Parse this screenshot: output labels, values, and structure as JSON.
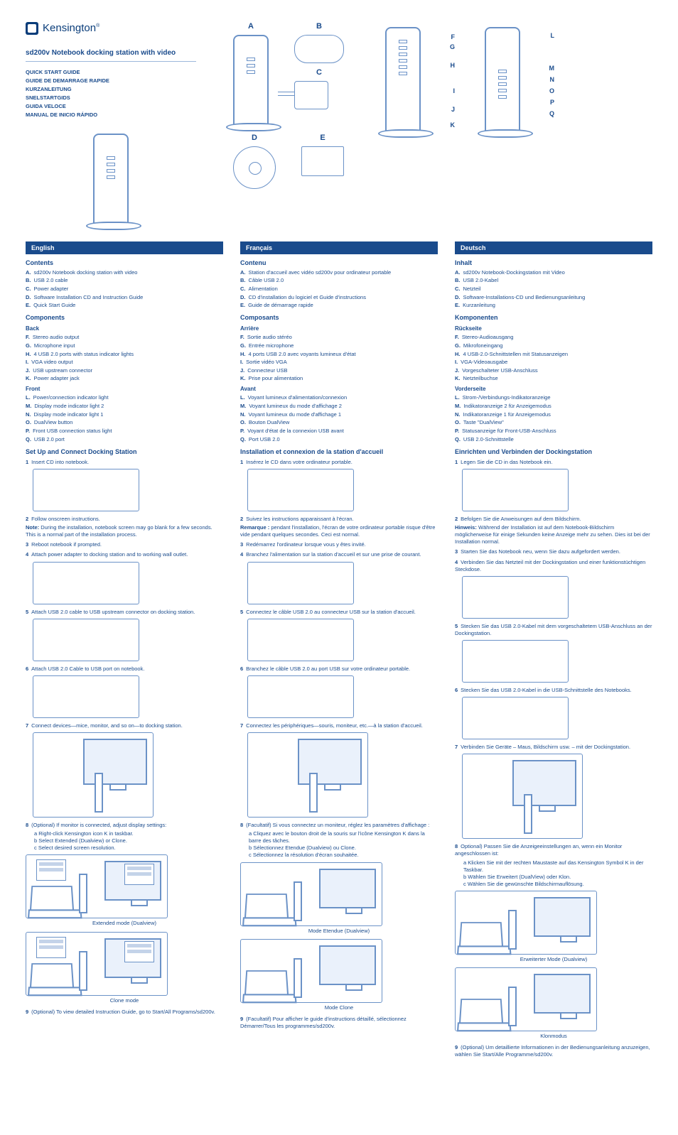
{
  "brand": "Kensington",
  "product_title": "sd200v Notebook docking station with video",
  "guides": [
    "QUICK START GUIDE",
    "GUIDE DE DEMARRAGE RAPIDE",
    "KURZANLEITUNG",
    "SNELSTARTGIDS",
    "GUIDA VELOCE",
    "MANUAL DE INICIO RÁPIDO"
  ],
  "box_labels": {
    "A": "A",
    "B": "B",
    "C": "C",
    "D": "D",
    "E": "E"
  },
  "port_labels_back": [
    "F",
    "G",
    "H",
    "I",
    "J",
    "K"
  ],
  "port_labels_front": [
    "L",
    "M",
    "N",
    "O",
    "P",
    "Q"
  ],
  "langs": {
    "en": {
      "band": "English",
      "contents_h": "Contents",
      "contents": [
        [
          "A.",
          "sd200v Notebook docking station with video"
        ],
        [
          "B.",
          "USB 2.0 cable"
        ],
        [
          "C.",
          "Power adapter"
        ],
        [
          "D.",
          "Software Installation CD and Instruction Guide"
        ],
        [
          "E.",
          "Quick Start Guide"
        ]
      ],
      "components_h": "Components",
      "back_h": "Back",
      "back": [
        [
          "F.",
          "Stereo audio output"
        ],
        [
          "G.",
          "Microphone input"
        ],
        [
          "H.",
          "4 USB 2.0 ports with status indicator lights"
        ],
        [
          "I.",
          "VGA video output"
        ],
        [
          "J.",
          "USB upstream connector"
        ],
        [
          "K.",
          "Power adapter jack"
        ]
      ],
      "front_h": "Front",
      "front": [
        [
          "L.",
          "Power/connection indicator light"
        ],
        [
          "M.",
          "Display mode indicator light 2"
        ],
        [
          "N.",
          "Display mode indicator light 1"
        ],
        [
          "O.",
          "DualView button"
        ],
        [
          "P.",
          "Front USB connection status light"
        ],
        [
          "Q.",
          "USB 2.0 port"
        ]
      ],
      "setup_h": "Set Up and Connect Docking Station",
      "s1": [
        "1",
        "Insert CD into notebook."
      ],
      "s2": [
        "2",
        "Follow onscreen instructions."
      ],
      "note_l": "Note:",
      "note": "During the installation, notebook screen may go blank for a few seconds. This is a normal part of the installation process.",
      "s3": [
        "3",
        "Reboot notebook if prompted."
      ],
      "s4": [
        "4",
        "Attach power adapter to docking station and to working wall outlet."
      ],
      "s5": [
        "5",
        "Attach USB 2.0 cable to USB upstream connector on docking station."
      ],
      "s6": [
        "6",
        "Attach USB 2.0 Cable to USB port on notebook."
      ],
      "s7": [
        "7",
        "Connect devices—mice, monitor, and so on—to docking station."
      ],
      "s8": [
        "8",
        "(Optional) If monitor is connected, adjust display settings:"
      ],
      "s8a": "a  Right-click Kensington icon  K  in taskbar.",
      "s8b": "b  Select Extended (Dualview) or Clone.",
      "s8c": "c  Select desired screen resolution.",
      "cap_ext": "Extended mode (Dualview)",
      "cap_clone": "Clone mode",
      "s9": [
        "9",
        "(Optional) To view detailed Instruction Guide, go to Start/All Programs/sd200v."
      ]
    },
    "fr": {
      "band": "Français",
      "contents_h": "Contenu",
      "contents": [
        [
          "A.",
          "Station d'accueil avec vidéo sd200v pour ordinateur portable"
        ],
        [
          "B.",
          "Câble USB 2.0"
        ],
        [
          "C.",
          "Alimentation"
        ],
        [
          "D.",
          "CD d'installation du logiciel et Guide d'instructions"
        ],
        [
          "E.",
          "Guide de démarrage rapide"
        ]
      ],
      "components_h": "Composants",
      "back_h": "Arrière",
      "back": [
        [
          "F.",
          "Sortie audio stéréo"
        ],
        [
          "G.",
          "Entrée microphone"
        ],
        [
          "H.",
          "4 ports USB 2.0 avec voyants lumineux d'état"
        ],
        [
          "I.",
          "Sortie vidéo VGA"
        ],
        [
          "J.",
          "Connecteur USB"
        ],
        [
          "K.",
          "Prise pour alimentation"
        ]
      ],
      "front_h": "Avant",
      "front": [
        [
          "L.",
          "Voyant lumineux d'alimentation/connexion"
        ],
        [
          "M.",
          "Voyant lumineux du mode d'affichage 2"
        ],
        [
          "N.",
          "Voyant lumineux du mode d'affichage 1"
        ],
        [
          "O.",
          "Bouton DualView"
        ],
        [
          "P.",
          "Voyant d'état de la connexion USB avant"
        ],
        [
          "Q.",
          "Port USB 2.0"
        ]
      ],
      "setup_h": "Installation et connexion de la station d'accueil",
      "s1": [
        "1",
        "Insérez le CD dans votre ordinateur portable."
      ],
      "s2": [
        "2",
        "Suivez les instructions apparaissant à l'écran."
      ],
      "note_l": "Remarque :",
      "note": "pendant l'installation, l'écran de votre ordinateur portable risque d'être vide pendant quelques secondes. Ceci est normal.",
      "s3": [
        "3",
        "Redémarrez l'ordinateur lorsque vous y êtes invité."
      ],
      "s4": [
        "4",
        "Branchez l'alimentation sur la station d'accueil et sur une prise de courant."
      ],
      "s5": [
        "5",
        "Connectez le câble USB 2.0 au connecteur USB sur la station d'accueil."
      ],
      "s6": [
        "6",
        "Branchez le câble USB 2.0 au port USB sur votre ordinateur portable."
      ],
      "s7": [
        "7",
        "Connectez les périphériques—souris, moniteur, etc.—à la station d'accueil."
      ],
      "s8": [
        "8",
        "(Facultatif) Si vous connectez un moniteur, réglez les paramètres d'affichage :"
      ],
      "s8a": "a  Cliquez avec le bouton droit de la souris sur l'icône Kensington  K  dans la barre des tâches.",
      "s8b": "b  Sélectionnez Etendue (Dualview) ou Clone.",
      "s8c": "c  Sélectionnez la résolution d'écran souhaitée.",
      "cap_ext": "Mode Etendue (Dualview)",
      "cap_clone": "Mode Clone",
      "s9": [
        "9",
        "(Facultatif) Pour afficher le guide d'instructions détaillé, sélectionnez Démarrer/Tous les programmes/sd200v."
      ]
    },
    "de": {
      "band": "Deutsch",
      "contents_h": "Inhalt",
      "contents": [
        [
          "A.",
          "sd200v Notebook-Dockingstation mit Video"
        ],
        [
          "B.",
          "USB 2.0-Kabel"
        ],
        [
          "C.",
          "Netzteil"
        ],
        [
          "D.",
          "Software-Installations-CD und Bedienungsanleitung"
        ],
        [
          "E.",
          "Kurzanleitung"
        ]
      ],
      "components_h": "Komponenten",
      "back_h": "Rückseite",
      "back": [
        [
          "F.",
          "Stereo-Audioausgang"
        ],
        [
          "G.",
          "Mikrofoneingang"
        ],
        [
          "H.",
          "4 USB-2.0-Schnittstellen mit Statusanzeigen"
        ],
        [
          "I.",
          "VGA-Videoausgabe"
        ],
        [
          "J.",
          "Vorgeschalteter USB-Anschluss"
        ],
        [
          "K.",
          "Netzteilbuchse"
        ]
      ],
      "front_h": "Vorderseite",
      "front": [
        [
          "L.",
          "Strom-/Verbindungs-Indikatoranzeige"
        ],
        [
          "M.",
          "Indikatoranzeige 2 für Anzeigemodus"
        ],
        [
          "N.",
          "Indikatoranzeige 1 für Anzeigemodus"
        ],
        [
          "O.",
          "Taste \"DualView\""
        ],
        [
          "P.",
          "Statusanzeige für Front-USB-Anschluss"
        ],
        [
          "Q.",
          "USB 2.0-Schnittstelle"
        ]
      ],
      "setup_h": "Einrichten und Verbinden der Dockingstation",
      "s1": [
        "1",
        "Legen Sie die CD in das Notebook ein."
      ],
      "s2": [
        "2",
        "Befolgen Sie die Anweisungen auf dem Bildschirm."
      ],
      "note_l": "Hinweis:",
      "note": "Während der Installation ist auf dem Notebook-Bildschirm möglicherweise für einige Sekunden keine Anzeige mehr zu sehen. Dies ist bei der Installation normal.",
      "s3": [
        "3",
        "Starten Sie das Notebook neu, wenn Sie dazu aufgefordert werden."
      ],
      "s4": [
        "4",
        "Verbinden Sie das Netzteil mit der Dockingstation und einer funktionstüchtigen Steckdose."
      ],
      "s5": [
        "5",
        "Stecken Sie das USB 2.0-Kabel mit dem vorgeschaltetem USB-Anschluss an der Dockingstation."
      ],
      "s6": [
        "6",
        "Stecken Sie das USB 2.0-Kabel in die USB-Schnittstelle des Notebooks."
      ],
      "s7": [
        "7",
        "Verbinden Sie Geräte – Maus, Bildschirm usw. – mit der Dockingstation."
      ],
      "s8": [
        "8",
        "Optional) Passen Sie die Anzeigeeinstellungen an, wenn ein Monitor angeschlossen ist:"
      ],
      "s8a": "a  Klicken Sie mit der rechten Maustaste auf das Kensington Symbol  K  in der Taskbar.",
      "s8b": "b  Wählen Sie Erweitert (DualView) oder Klon.",
      "s8c": "c  Wählen Sie die gewünschte Bildschirmauflösung.",
      "cap_ext": "Erweiterter Mode (Dualview)",
      "cap_clone": "Klonmodus",
      "s9": [
        "9",
        "(Optional) Um detaillierte Informationen in der Bedienungsanleitung anzuzeigen, wählen Sie Start/Alle Programme/sd200v."
      ]
    }
  },
  "colors": {
    "brand": "#1a4b8c",
    "line": "#6b92c7",
    "band_bg": "#1a4b8c",
    "rule": "#9db8dc"
  }
}
